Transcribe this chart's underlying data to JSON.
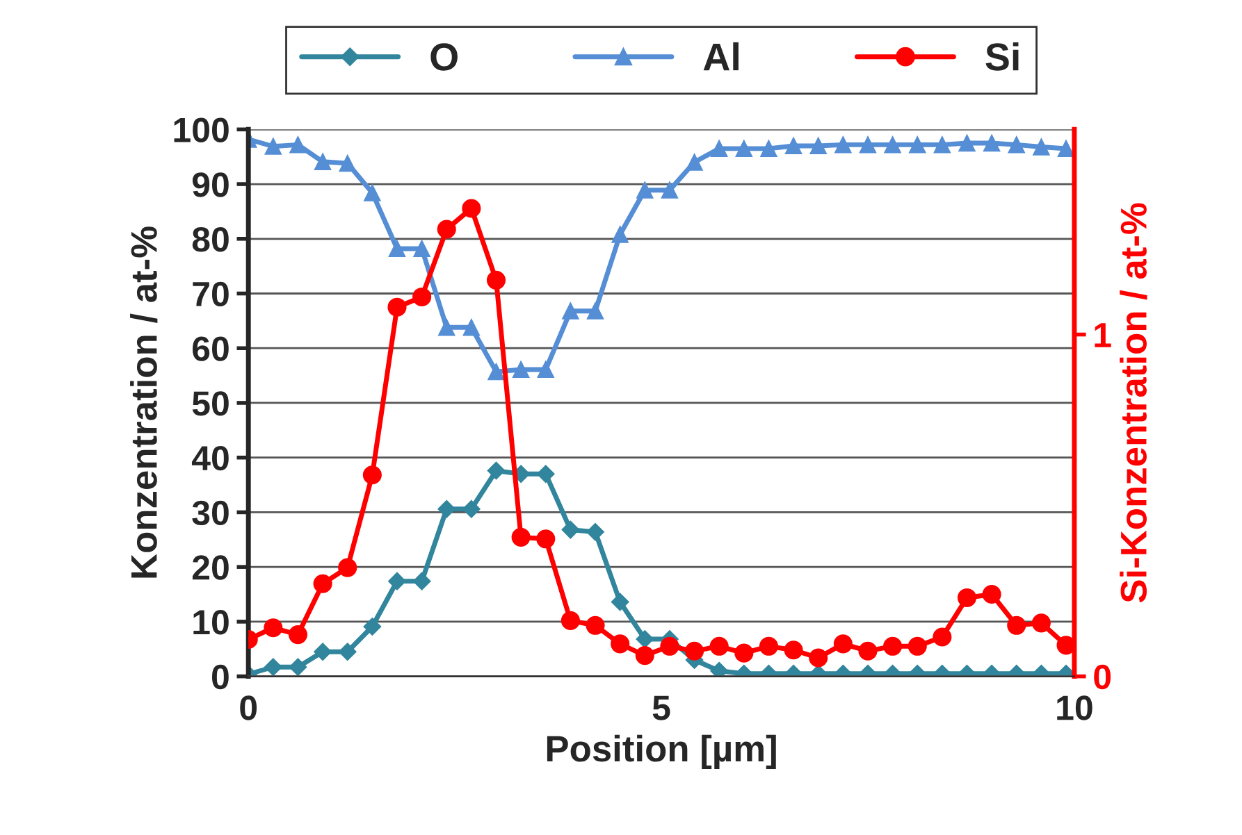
{
  "chart_data": {
    "type": "line",
    "xlabel": "Position [µm]",
    "ylabel": "Konzentration / at-%",
    "y2label": "Si-Konzentration / at-%",
    "x": [
      0,
      0.3,
      0.6,
      0.9,
      1.2,
      1.5,
      1.8,
      2.1,
      2.4,
      2.7,
      3.0,
      3.3,
      3.6,
      3.9,
      4.2,
      4.5,
      4.8,
      5.1,
      5.4,
      5.7,
      6.0,
      6.3,
      6.6,
      6.9,
      7.2,
      7.5,
      7.8,
      8.1,
      8.4,
      8.7,
      9.0,
      9.3,
      9.6,
      9.9
    ],
    "series": [
      {
        "name": "O",
        "color": "#31859c",
        "marker": "diamond",
        "values": [
          0.4,
          1.7,
          1.7,
          4.5,
          4.5,
          9.1,
          17.4,
          17.4,
          30.6,
          30.6,
          37.6,
          37,
          37,
          26.8,
          26.4,
          13.6,
          6.8,
          6.8,
          3.0,
          1.0,
          0.5,
          0.5,
          0.5,
          0.5,
          0.5,
          0.5,
          0.5,
          0.5,
          0.5,
          0.5,
          0.5,
          0.5,
          0.5,
          0.5
        ]
      },
      {
        "name": "Al",
        "color": "#558ed5",
        "marker": "triangle",
        "values": [
          98.2,
          96.9,
          97.2,
          94.1,
          93.8,
          88.4,
          78.2,
          78.2,
          63.8,
          63.8,
          55.7,
          56.1,
          56.1,
          66.8,
          66.8,
          80.8,
          88.9,
          88.9,
          94.0,
          96.5,
          96.5,
          96.5,
          97,
          97,
          97.2,
          97.2,
          97.2,
          97.2,
          97.2,
          97.5,
          97.5,
          97.2,
          96.8,
          96.5
        ]
      },
      {
        "name": "Si",
        "color": "#ff0000",
        "marker": "circle",
        "axis": "y2",
        "values": [
          0.108,
          0.142,
          0.122,
          0.271,
          0.318,
          0.589,
          1.08,
          1.11,
          1.308,
          1.369,
          1.159,
          0.407,
          0.402,
          0.163,
          0.149,
          0.095,
          0.061,
          0.088,
          0.074,
          0.088,
          0.068,
          0.088,
          0.077,
          0.054,
          0.095,
          0.074,
          0.088,
          0.088,
          0.115,
          0.23,
          0.24,
          0.149,
          0.156,
          0.091
        ]
      }
    ],
    "xlim": [
      0,
      10
    ],
    "xticks": [
      0,
      5,
      10
    ],
    "ylim": [
      0,
      100
    ],
    "yticks": [
      0,
      10,
      20,
      30,
      40,
      50,
      60,
      70,
      80,
      90,
      100
    ],
    "y2lim": [
      0,
      1.6
    ],
    "y2ticks": [
      0,
      1
    ],
    "grid": "y",
    "legend": "top"
  }
}
